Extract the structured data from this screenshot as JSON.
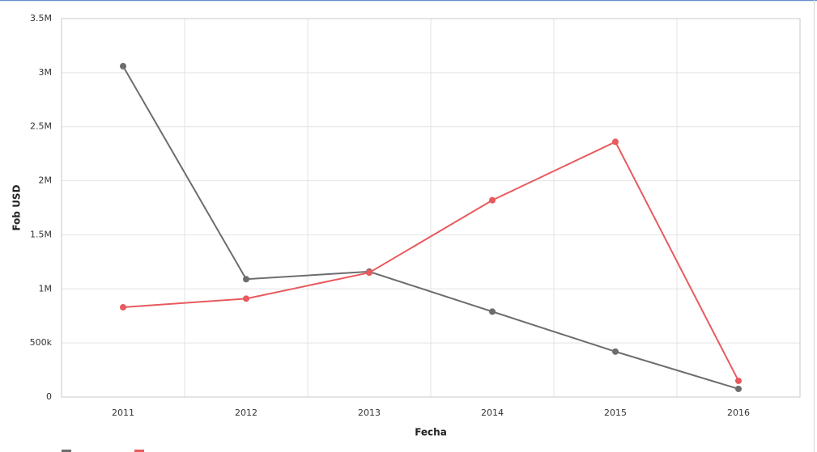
{
  "chart_data": {
    "type": "line",
    "x_label": "Fecha",
    "y_label": "Fob USD",
    "categories": [
      "2011",
      "2012",
      "2013",
      "2014",
      "2015",
      "2016"
    ],
    "series": [
      {
        "color": "#6d6d6d",
        "values": [
          3060000,
          1090000,
          1160000,
          790000,
          420000,
          75000
        ]
      },
      {
        "color": "#e85a5e",
        "values": [
          830000,
          910000,
          1150000,
          1820000,
          2360000,
          150000
        ]
      }
    ],
    "ylim": [
      0,
      3500000
    ],
    "yticks": [
      0,
      {
        "value": 500000,
        "label": "500k"
      },
      {
        "value": 1000000,
        "label": "1M"
      },
      {
        "value": 1500000,
        "label": "1.5M"
      },
      {
        "value": 2000000,
        "label": "2M"
      },
      {
        "value": 2500000,
        "label": "2.5M"
      },
      {
        "value": 3000000,
        "label": "3M"
      },
      {
        "value": 3500000,
        "label": "3.5M"
      }
    ],
    "grid": true
  }
}
